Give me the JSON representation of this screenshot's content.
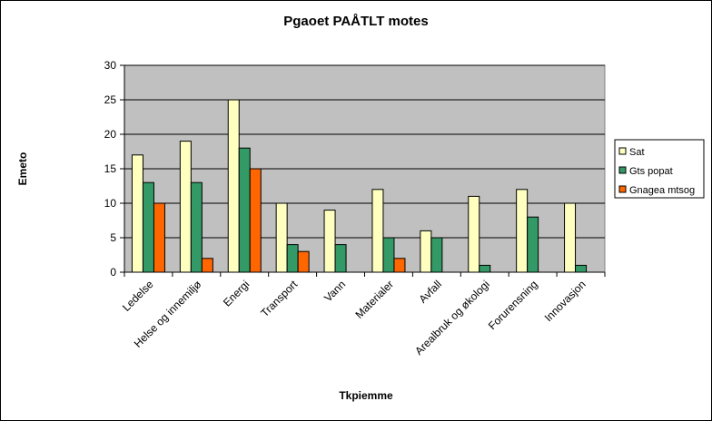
{
  "chart_data": {
    "type": "bar",
    "title": "Pgaoet PAÅTLT motes",
    "xlabel": "Tkpiemme",
    "ylabel": "Emeto",
    "ylim": [
      0,
      30
    ],
    "yticks": [
      0,
      5,
      10,
      15,
      20,
      25,
      30
    ],
    "grid": true,
    "legend_position": "right",
    "categories": [
      "Ledelse",
      "Helse og innemiljø",
      "Energi",
      "Transport",
      "Vann",
      "Materialer",
      "Avfall",
      "Arealbruk og økologi",
      "Forurensning",
      "Innovasjon"
    ],
    "series": [
      {
        "name": "Sat",
        "color": "#ffffc0",
        "values": [
          17,
          19,
          25,
          10,
          9,
          12,
          6,
          11,
          12,
          10
        ]
      },
      {
        "name": "Gts popat",
        "color": "#339966",
        "values": [
          13,
          13,
          18,
          4,
          4,
          5,
          5,
          1,
          8,
          1
        ]
      },
      {
        "name": "Gnagea mtsog",
        "color": "#ff6600",
        "values": [
          10,
          2,
          15,
          3,
          0,
          2,
          0,
          0,
          0,
          0
        ]
      }
    ],
    "plot_background": "#c0c0c0"
  }
}
